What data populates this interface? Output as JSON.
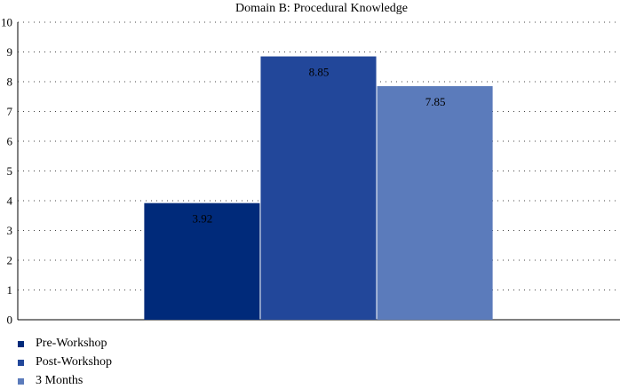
{
  "chart_data": {
    "type": "bar",
    "title": "Domain B: Procedural Knowledge",
    "xlabel": "",
    "ylabel": "",
    "categories": [
      ""
    ],
    "series": [
      {
        "name": "Pre-Workshop",
        "values": [
          3.92
        ],
        "color": "#002a7a",
        "label": "3.92"
      },
      {
        "name": "Post-Workshop",
        "values": [
          8.85
        ],
        "color": "#22479a",
        "label": "8.85"
      },
      {
        "name": "3 Months",
        "values": [
          7.85
        ],
        "color": "#5b7bbb",
        "label": "7.85"
      }
    ],
    "ylim": [
      0,
      10
    ],
    "yticks": [
      "0",
      "1",
      "2",
      "3",
      "4",
      "5",
      "6",
      "7",
      "8",
      "9",
      "10"
    ],
    "grid": true,
    "legend_position": "bottom-left"
  }
}
